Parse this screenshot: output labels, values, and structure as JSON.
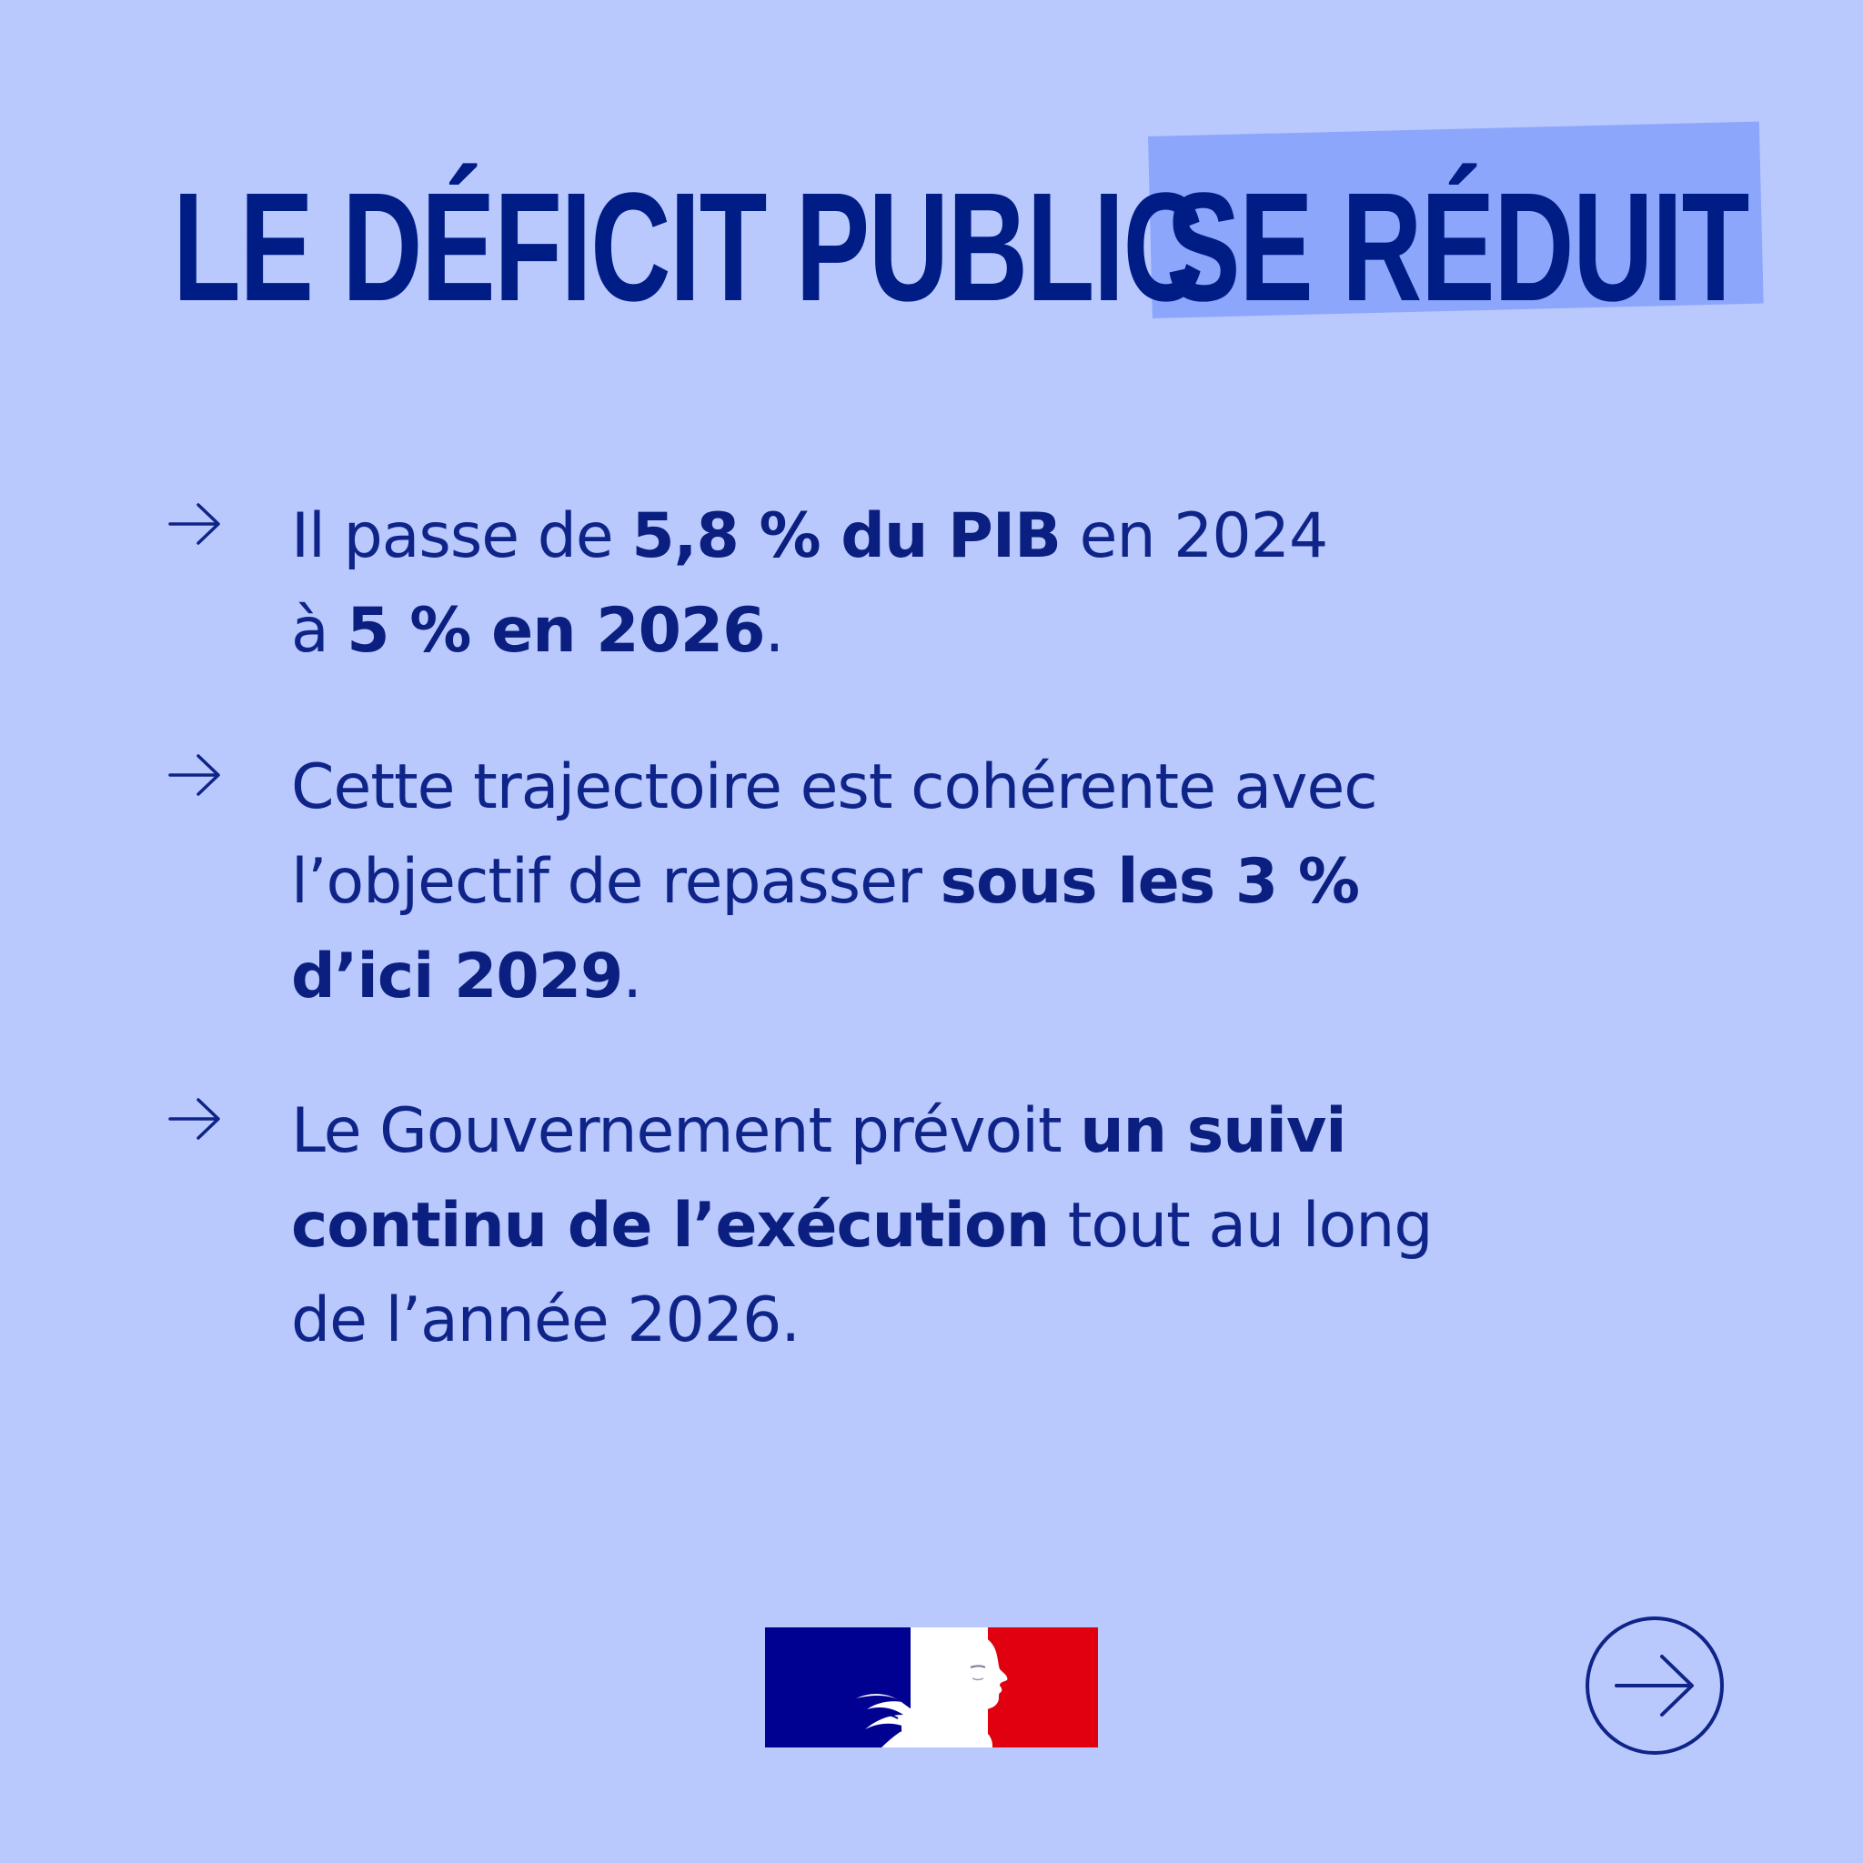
{
  "title": {
    "part1": "LE DÉFICIT PUBLIC",
    "part2": "SE RÉDUIT"
  },
  "bullets": [
    {
      "segments": [
        {
          "text": "Il passe de ",
          "bold": false
        },
        {
          "text": "5,8 % du PIB",
          "bold": true
        },
        {
          "text": " en 2024",
          "bold": false
        },
        {
          "text": "\n",
          "bold": false
        },
        {
          "text": "à ",
          "bold": false
        },
        {
          "text": "5 % en 2026",
          "bold": true
        },
        {
          "text": ".",
          "bold": false
        }
      ]
    },
    {
      "segments": [
        {
          "text": "Cette trajectoire est cohérente avec",
          "bold": false
        },
        {
          "text": "\n",
          "bold": false
        },
        {
          "text": "l’objectif de repasser ",
          "bold": false
        },
        {
          "text": "sous les 3 %",
          "bold": true
        },
        {
          "text": "\n",
          "bold": false
        },
        {
          "text": "d’ici 2029",
          "bold": true
        },
        {
          "text": ".",
          "bold": false
        }
      ]
    },
    {
      "segments": [
        {
          "text": "Le Gouvernement prévoit ",
          "bold": false
        },
        {
          "text": "un suivi",
          "bold": true
        },
        {
          "text": "\n",
          "bold": false
        },
        {
          "text": "continu de l’exécution",
          "bold": true
        },
        {
          "text": " tout au long",
          "bold": false
        },
        {
          "text": "\n",
          "bold": false
        },
        {
          "text": "de l’année 2026.",
          "bold": false
        }
      ]
    }
  ],
  "icons": {
    "bullet": "arrow-right-icon",
    "logo": "marianne-logo",
    "next": "arrow-right-circle-icon"
  },
  "colors": {
    "background": "#bac9fd",
    "title": "#001d86",
    "highlight": "#8ca6fb",
    "text": "#0f2488",
    "flag_blue": "#000091",
    "flag_red": "#e1000f"
  }
}
